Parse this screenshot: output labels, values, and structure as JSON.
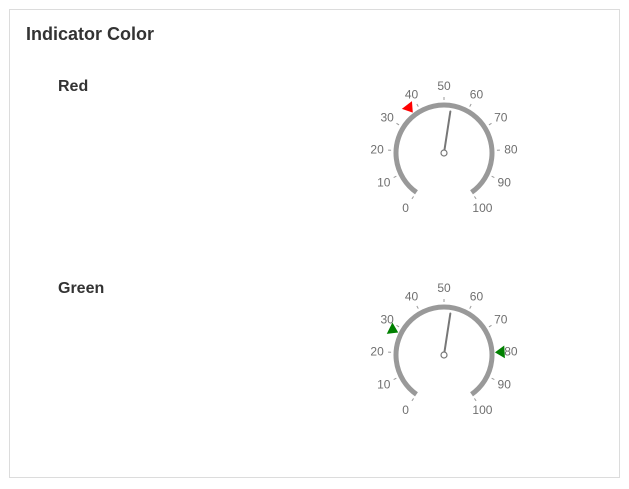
{
  "panel": {
    "title": "Indicator Color"
  },
  "gauges": [
    {
      "label": "Red",
      "min": 0,
      "max": 100,
      "value": 53,
      "tick_labels": [
        "0",
        "10",
        "20",
        "30",
        "40",
        "50",
        "60",
        "70",
        "80",
        "90",
        "100"
      ],
      "arc_color": "#999999",
      "needle_color": "#777777",
      "indicators": [
        {
          "value": 37,
          "color": "#ff0000"
        }
      ]
    },
    {
      "label": "Green",
      "min": 0,
      "max": 100,
      "value": 53,
      "tick_labels": [
        "0",
        "10",
        "20",
        "30",
        "40",
        "50",
        "60",
        "70",
        "80",
        "90",
        "100"
      ],
      "arc_color": "#999999",
      "needle_color": "#777777",
      "indicators": [
        {
          "value": 28,
          "color": "#008000"
        },
        {
          "value": 80,
          "color": "#008000"
        }
      ]
    }
  ]
}
